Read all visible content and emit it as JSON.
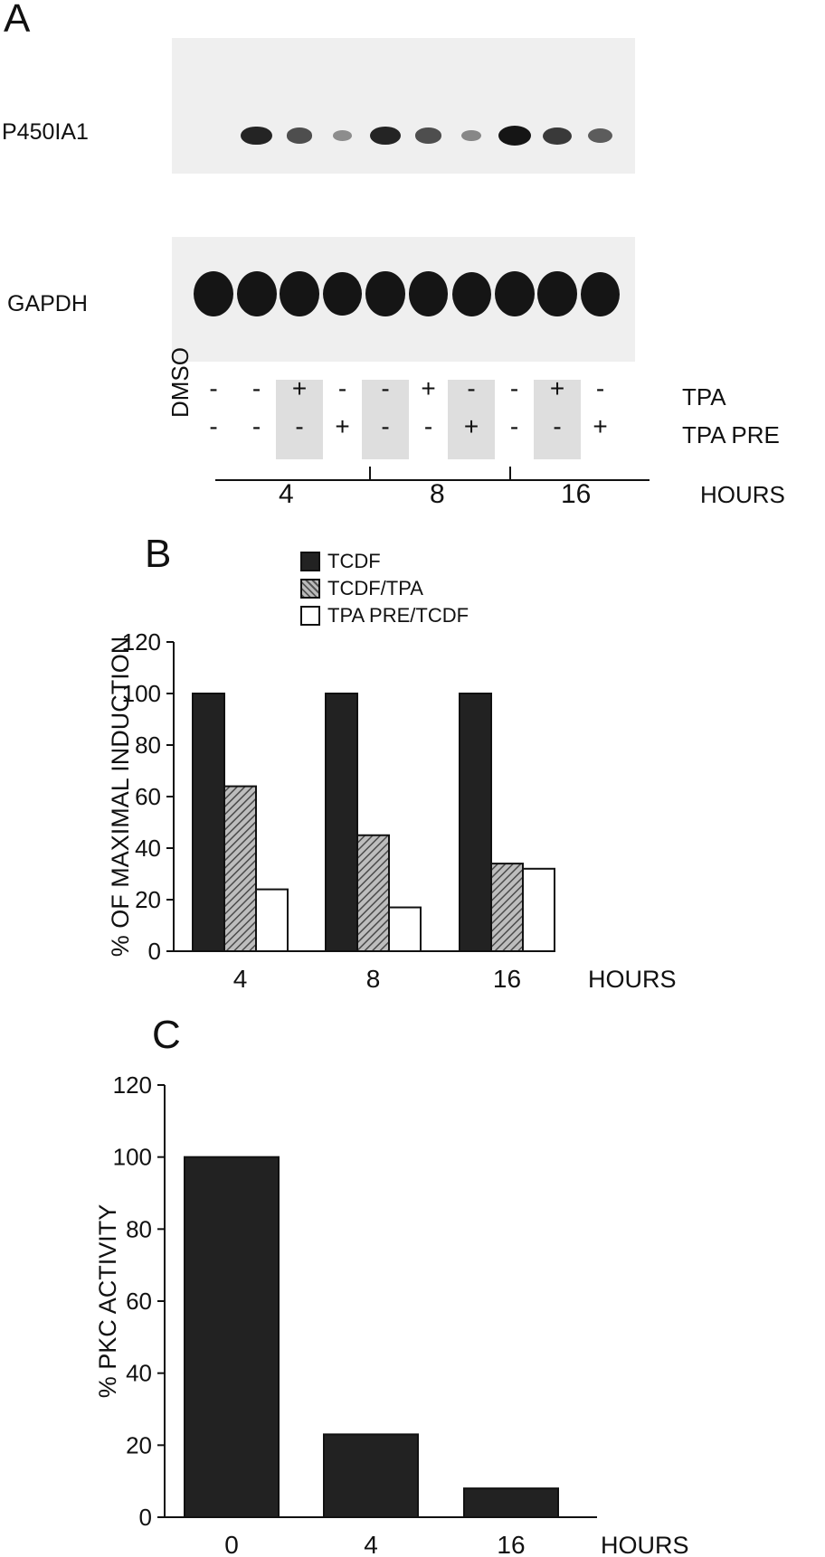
{
  "panel_a": {
    "label": "A",
    "blot_labels": [
      "P450IA1",
      "GAPDH"
    ],
    "row_labels": {
      "tpa": "TPA",
      "tpa_pre": "TPA PRE",
      "dmso": "DMSO"
    },
    "lanes": [
      {
        "tpa": "-",
        "pre": "-",
        "ia1": 0.0,
        "gapdh": 1.0,
        "shade": false
      },
      {
        "tpa": "-",
        "pre": "-",
        "ia1": 0.9,
        "gapdh": 1.0,
        "shade": false
      },
      {
        "tpa": "+",
        "pre": "-",
        "ia1": 0.6,
        "gapdh": 0.95,
        "shade": true
      },
      {
        "tpa": "-",
        "pre": "+",
        "ia1": 0.15,
        "gapdh": 0.85,
        "shade": false
      },
      {
        "tpa": "-",
        "pre": "-",
        "ia1": 0.9,
        "gapdh": 0.95,
        "shade": true
      },
      {
        "tpa": "+",
        "pre": "-",
        "ia1": 0.6,
        "gapdh": 0.95,
        "shade": false
      },
      {
        "tpa": "-",
        "pre": "+",
        "ia1": 0.2,
        "gapdh": 0.9,
        "shade": true
      },
      {
        "tpa": "-",
        "pre": "-",
        "ia1": 1.0,
        "gapdh": 1.0,
        "shade": false
      },
      {
        "tpa": "+",
        "pre": "-",
        "ia1": 0.75,
        "gapdh": 0.95,
        "shade": true
      },
      {
        "tpa": "-",
        "pre": "+",
        "ia1": 0.5,
        "gapdh": 0.9,
        "shade": false
      }
    ],
    "time_groups": [
      "4",
      "8",
      "16"
    ],
    "time_unit": "HOURS"
  },
  "chart_data": [
    {
      "type": "bar",
      "panel": "B",
      "categories": [
        "4",
        "8",
        "16"
      ],
      "xlabel": "HOURS",
      "ylabel": "% OF MAXIMAL INDUCTION",
      "ylim": [
        0,
        120
      ],
      "yticks": [
        0,
        20,
        40,
        60,
        80,
        100,
        120
      ],
      "grid": false,
      "legend_position": "top-left",
      "series": [
        {
          "name": "TCDF",
          "values": [
            100,
            100,
            100
          ],
          "color": "#222222",
          "pattern": "solid"
        },
        {
          "name": "TCDF/TPA",
          "values": [
            64,
            45,
            34
          ],
          "color": "#8a8a8a",
          "pattern": "crosshatch"
        },
        {
          "name": "TPA PRE/TCDF",
          "values": [
            24,
            17,
            32
          ],
          "color": "#ffffff",
          "pattern": "open"
        }
      ]
    },
    {
      "type": "bar",
      "panel": "C",
      "categories": [
        "0",
        "4",
        "16"
      ],
      "xlabel": "HOURS",
      "ylabel": "% PKC ACTIVITY",
      "ylim": [
        0,
        120
      ],
      "yticks": [
        0,
        20,
        40,
        60,
        80,
        100,
        120
      ],
      "grid": false,
      "series": [
        {
          "name": "",
          "values": [
            100,
            23,
            8
          ],
          "color": "#222222"
        }
      ]
    }
  ],
  "panel_b": {
    "label": "B"
  },
  "panel_c": {
    "label": "C"
  }
}
